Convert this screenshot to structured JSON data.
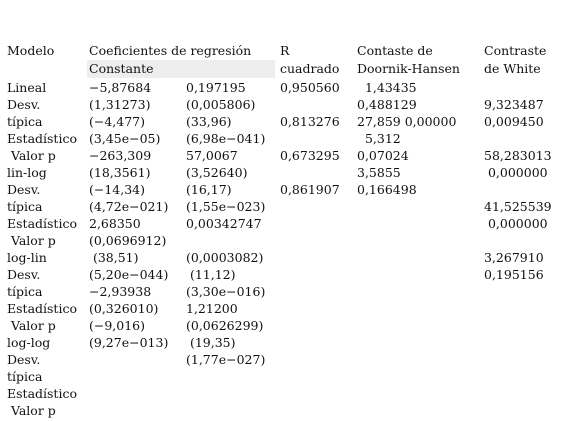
{
  "header": {
    "modelo": "Modelo",
    "coeficientes": "Coeficientes de regresión",
    "constante": "Constante",
    "r_line1": "R",
    "r_line2": "cuadrado",
    "doornik_line1": "Contaste de",
    "doornik_line2": "Doornik-Hansen",
    "white_line1": "Contraste",
    "white_line2": "de White"
  },
  "row_labels": [
    "Lineal",
    "Desv.",
    "típica",
    "Estadístico",
    " Valor p",
    "lin-log",
    "Desv.",
    "típica",
    "Estadístico",
    " Valor p",
    "log-lin",
    "Desv.",
    "típica",
    "Estadístico",
    " Valor p",
    "log-log",
    "Desv.",
    "típica",
    "Estadístico",
    " Valor p"
  ],
  "col_constante": [
    "−5,87684",
    "(1,31273)",
    "(−4,477)",
    "(3,45e−05)",
    "−263,309",
    "(18,3561)",
    "(−14,34)",
    "(4,72e−021)",
    "2,68350",
    "(0,0696912)",
    " (38,51)",
    "(5,20e−044)",
    "−2,93938",
    "(0,326010)",
    "(−9,016)",
    "(9,27e−013)"
  ],
  "col_slope": [
    "0,197195",
    "(0,005806)",
    "(33,96)",
    "(6,98e−041)",
    "57,0067",
    "(3,52640)",
    "(16,17)",
    "(1,55e−023)",
    "0,00342747",
    "",
    "(0,0003082)",
    " (11,12)",
    "(3,30e−016)",
    "1,21200",
    "(0,0626299)",
    " (19,35)",
    "(1,77e−027)"
  ],
  "col_r2": [
    "0,950560",
    "",
    "0,813276",
    "",
    "0,673295",
    "",
    "0,861907"
  ],
  "col_doornik": [
    "  1,43435",
    "0,488129",
    "27,859 0,00000",
    "  5,312",
    "0,07024",
    "3,5855",
    "0,166498"
  ],
  "col_white": [
    "",
    "9,323487",
    "0,009450",
    "",
    "58,283013",
    " 0,000000",
    "",
    "41,525539",
    " 0,000000",
    "",
    "3,267910",
    "0,195156"
  ]
}
